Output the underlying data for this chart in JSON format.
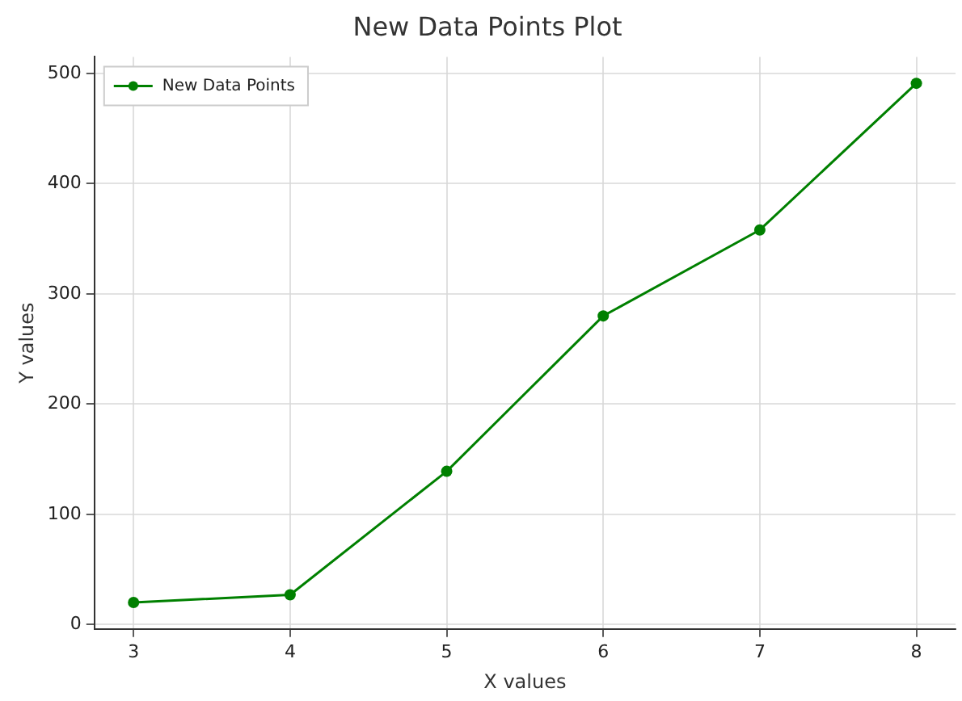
{
  "chart_data": {
    "type": "line",
    "title": "New Data Points Plot",
    "xlabel": "X values",
    "ylabel": "Y values",
    "x": [
      3,
      4,
      5,
      6,
      7,
      8
    ],
    "series": [
      {
        "name": "New Data Points",
        "color": "#008000",
        "values": [
          20,
          27,
          139,
          280,
          358,
          491
        ]
      }
    ],
    "xlim": [
      2.75,
      8.25
    ],
    "xticks": [
      3,
      4,
      5,
      6,
      7,
      8
    ],
    "ylim": [
      -4,
      515
    ],
    "yticks": [
      0,
      100,
      200,
      300,
      400,
      500
    ],
    "grid": true,
    "legend": "top left",
    "marker": "circle",
    "line_style": "solid"
  }
}
